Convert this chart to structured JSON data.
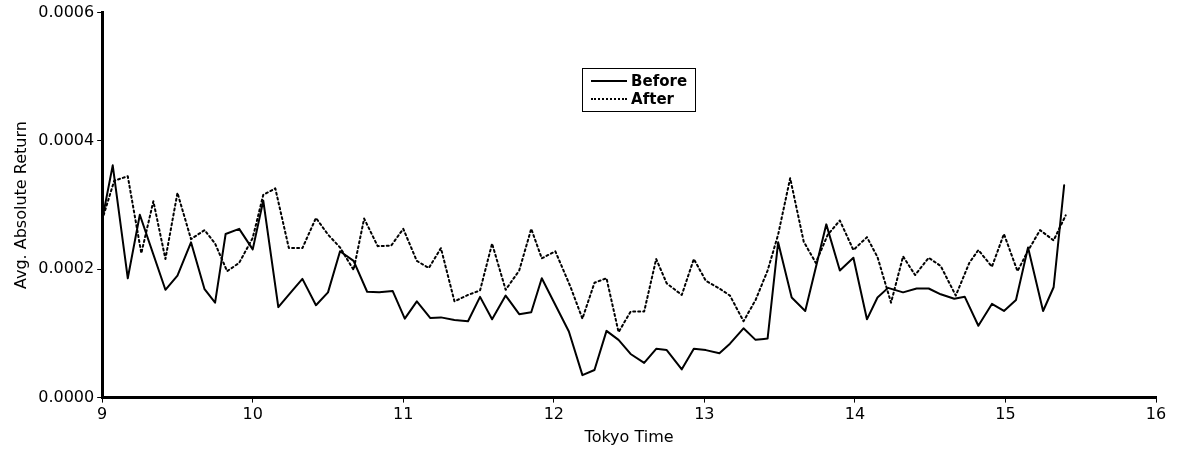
{
  "chart_data": {
    "type": "line",
    "xlabel": "Tokyo Time",
    "ylabel": "Avg. Absolute Return",
    "xlim": [
      9,
      16
    ],
    "xticks": [
      9,
      10,
      11,
      12,
      13,
      14,
      15,
      16
    ],
    "ylim": [
      0,
      0.0006
    ],
    "yticks": [
      {
        "value": 0,
        "label": "0.0000"
      },
      {
        "value": 0.0002,
        "label": "0.0002"
      },
      {
        "value": 0.0004,
        "label": "0.0004"
      },
      {
        "value": 0.0006,
        "label": "0.0006"
      }
    ],
    "grid": false,
    "legend": "top",
    "marker": "none",
    "series": [
      {
        "name": "Before",
        "color": "#000000",
        "line_style": "solid",
        "x": [
          9.0,
          9.07,
          9.17,
          9.25,
          9.42,
          9.5,
          9.59,
          9.68,
          9.75,
          9.82,
          9.91,
          10.0,
          10.07,
          10.17,
          10.26,
          10.33,
          10.42,
          10.5,
          10.58,
          10.67,
          10.76,
          10.84,
          10.93,
          11.01,
          11.09,
          11.18,
          11.25,
          11.34,
          11.43,
          11.51,
          11.59,
          11.68,
          11.77,
          11.85,
          11.92,
          12.1,
          12.19,
          12.27,
          12.35,
          12.43,
          12.51,
          12.6,
          12.68,
          12.75,
          12.85,
          12.93,
          13.01,
          13.1,
          13.17,
          13.26,
          13.34,
          13.42,
          13.49,
          13.58,
          13.67,
          13.81,
          13.9,
          13.99,
          14.08,
          14.15,
          14.22,
          14.32,
          14.41,
          14.49,
          14.57,
          14.66,
          14.73,
          14.82,
          14.91,
          14.99,
          15.07,
          15.15,
          15.25,
          15.32,
          15.39
        ],
        "values": [
          0.000277,
          0.000362,
          0.000186,
          0.000285,
          0.000168,
          0.00019,
          0.000242,
          0.000169,
          0.000148,
          0.000255,
          0.000263,
          0.000231,
          0.000307,
          0.000141,
          0.000166,
          0.000185,
          0.000144,
          0.000164,
          0.000228,
          0.000213,
          0.000165,
          0.000164,
          0.000166,
          0.000123,
          0.00015,
          0.000124,
          0.000125,
          0.000121,
          0.000119,
          0.000157,
          0.000122,
          0.000159,
          0.00013,
          0.000133,
          0.000186,
          0.000103,
          3.5e-05,
          4.3e-05,
          0.000104,
          9e-05,
          6.8e-05,
          5.4e-05,
          7.6e-05,
          7.4e-05,
          4.4e-05,
          7.6e-05,
          7.4e-05,
          6.9e-05,
          8.4e-05,
          0.000108,
          9e-05,
          9.2e-05,
          0.000242,
          0.000156,
          0.000135,
          0.00027,
          0.000198,
          0.000218,
          0.000122,
          0.000156,
          0.000171,
          0.000164,
          0.00017,
          0.00017,
          0.000161,
          0.000154,
          0.000157,
          0.000112,
          0.000146,
          0.000135,
          0.000152,
          0.000234,
          0.000135,
          0.000172,
          0.000331
        ]
      },
      {
        "name": "After",
        "color": "#000000",
        "line_style": "dotted",
        "x": [
          9.0,
          9.08,
          9.17,
          9.26,
          9.34,
          9.42,
          9.5,
          9.59,
          9.68,
          9.75,
          9.83,
          9.91,
          10.0,
          10.07,
          10.15,
          10.24,
          10.33,
          10.42,
          10.5,
          10.58,
          10.67,
          10.74,
          10.83,
          10.92,
          11.0,
          11.09,
          11.17,
          11.25,
          11.34,
          11.43,
          11.51,
          11.59,
          11.68,
          11.77,
          11.85,
          11.92,
          12.01,
          12.11,
          12.19,
          12.27,
          12.35,
          12.43,
          12.51,
          12.6,
          12.68,
          12.75,
          12.85,
          12.93,
          13.01,
          13.1,
          13.17,
          13.26,
          13.34,
          13.42,
          13.49,
          13.57,
          13.66,
          13.74,
          13.82,
          13.9,
          13.99,
          14.08,
          14.15,
          14.24,
          14.32,
          14.4,
          14.49,
          14.57,
          14.67,
          14.76,
          14.82,
          14.91,
          14.99,
          15.08,
          15.15,
          15.23,
          15.32,
          15.4
        ],
        "values": [
          0.000277,
          0.000338,
          0.000345,
          0.000225,
          0.000306,
          0.000216,
          0.000319,
          0.000247,
          0.000261,
          0.00024,
          0.000197,
          0.00021,
          0.000249,
          0.000316,
          0.000326,
          0.000233,
          0.000233,
          0.00028,
          0.000254,
          0.000234,
          0.000199,
          0.000279,
          0.000236,
          0.000237,
          0.000263,
          0.000213,
          0.000202,
          0.000233,
          0.00015,
          0.00016,
          0.000167,
          0.00024,
          0.000168,
          0.000198,
          0.000263,
          0.000217,
          0.000228,
          0.000173,
          0.000123,
          0.000179,
          0.000186,
          0.000102,
          0.000134,
          0.000134,
          0.000216,
          0.000178,
          0.00016,
          0.000216,
          0.000182,
          0.00017,
          0.000159,
          0.000119,
          0.000152,
          0.000198,
          0.000254,
          0.000342,
          0.000243,
          0.00021,
          0.000254,
          0.000276,
          0.00023,
          0.00025,
          0.000219,
          0.000148,
          0.00022,
          0.000191,
          0.000218,
          0.000205,
          0.000159,
          0.00021,
          0.00023,
          0.000204,
          0.000255,
          0.000197,
          0.000229,
          0.000261,
          0.000245,
          0.000284
        ]
      }
    ]
  }
}
